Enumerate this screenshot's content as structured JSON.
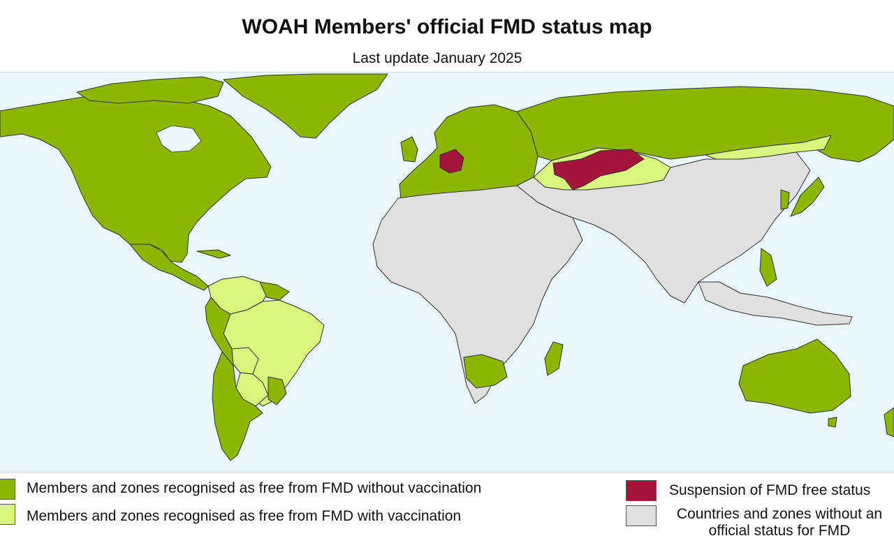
{
  "header": {
    "title": "WOAH Members' official FMD status map",
    "subtitle": "Last update January 2025"
  },
  "legend": {
    "free_without_vaccination": {
      "label": "Members and zones recognised as free from FMD without vaccination",
      "color": "#8db600"
    },
    "free_with_vaccination": {
      "label": "Members and zones recognised as free from FMD with vaccination",
      "color": "#d9f77f"
    },
    "suspension": {
      "label": "Suspension of FMD free status",
      "color": "#a3153a"
    },
    "no_status": {
      "label_line1": "Countries and zones without an",
      "label_line2": "official status for FMD",
      "color": "#e0e0e0"
    }
  },
  "map_colors": {
    "ocean": "#e9f7fb",
    "border": "#333333"
  }
}
